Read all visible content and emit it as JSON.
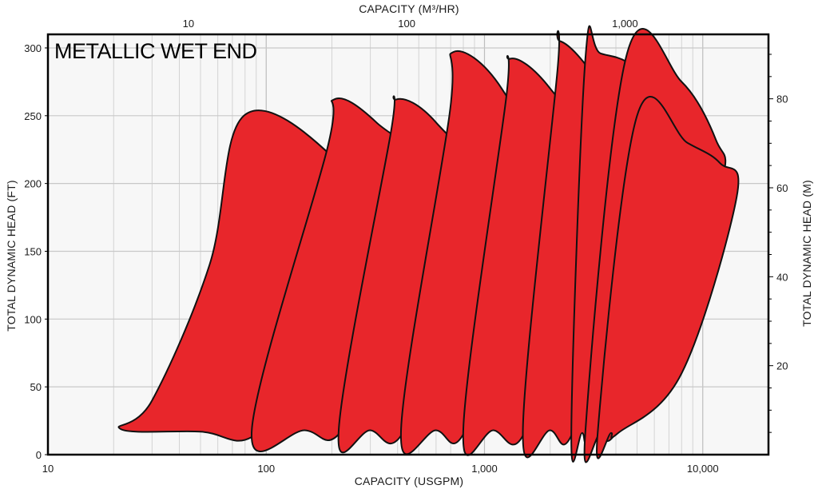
{
  "chart_data": {
    "type": "area",
    "title": "METALLIC WET END",
    "xlabel": "CAPACITY (USGPM)",
    "x_scale": "log",
    "xlim": [
      10,
      20000
    ],
    "ylabel": "TOTAL DYNAMIC HEAD (FT)",
    "ylim": [
      0,
      310
    ],
    "x_ticks": [
      10,
      100,
      1000,
      10000
    ],
    "x_tick_labels": [
      "10",
      "100",
      "1,000",
      "10,000"
    ],
    "y_ticks": [
      0,
      50,
      100,
      150,
      200,
      250,
      300
    ],
    "y_tick_labels": [
      "0",
      "50",
      "100",
      "150",
      "200",
      "250",
      "300"
    ],
    "x2label": "CAPACITY (M³/HR)",
    "x2_ticks": [
      10,
      100,
      1000
    ],
    "x2_tick_labels": [
      "10",
      "100",
      "1,000"
    ],
    "y2label": "TOTAL DYNAMIC HEAD (M)",
    "y2_ticks": [
      20,
      40,
      60,
      80
    ],
    "y2_tick_labels": [
      "20",
      "40",
      "60",
      "80"
    ],
    "grid": true,
    "fill_color": "#e8262b",
    "edge_color": "#111111",
    "series": [
      {
        "points": [
          [
            21.5,
            19
          ],
          [
            50,
            17
          ],
          [
            86,
            13
          ],
          [
            150,
            60
          ],
          [
            300,
            162
          ],
          [
            200,
            220
          ],
          [
            79,
            250
          ],
          [
            55,
            140
          ],
          [
            30,
            40
          ]
        ]
      },
      {
        "points": [
          [
            86,
            19
          ],
          [
            150,
            18
          ],
          [
            215,
            15
          ],
          [
            350,
            80
          ],
          [
            580,
            194
          ],
          [
            320,
            245
          ],
          [
            205,
            262
          ],
          [
            190,
            225
          ]
        ]
      },
      {
        "points": [
          [
            215,
            19
          ],
          [
            300,
            18
          ],
          [
            415,
            14
          ],
          [
            700,
            100
          ],
          [
            1060,
            184
          ],
          [
            600,
            245
          ],
          [
            395,
            262
          ],
          [
            370,
            235
          ]
        ]
      },
      {
        "points": [
          [
            415,
            19
          ],
          [
            600,
            18
          ],
          [
            800,
            15
          ],
          [
            1300,
            110
          ],
          [
            2070,
            184
          ],
          [
            1200,
            270
          ],
          [
            720,
            297
          ],
          [
            690,
            250
          ]
        ]
      },
      {
        "points": [
          [
            800,
            19
          ],
          [
            1100,
            18
          ],
          [
            1500,
            14
          ],
          [
            2300,
            110
          ],
          [
            3450,
            205
          ],
          [
            2000,
            270
          ],
          [
            1310,
            292
          ],
          [
            1250,
            260
          ]
        ]
      },
      {
        "points": [
          [
            1500,
            19
          ],
          [
            2000,
            18
          ],
          [
            2500,
            14
          ],
          [
            3800,
            110
          ],
          [
            5300,
            188
          ],
          [
            3400,
            270
          ],
          [
            2220,
            305
          ],
          [
            2150,
            280
          ]
        ]
      },
      {
        "points": [
          [
            2500,
            17
          ],
          [
            2800,
            16
          ],
          [
            3100,
            15
          ],
          [
            5000,
            100
          ],
          [
            8800,
            186
          ],
          [
            5500,
            275
          ],
          [
            3400,
            296
          ],
          [
            2900,
            292
          ]
        ]
      },
      {
        "points": [
          [
            2900,
            17
          ],
          [
            3400,
            16
          ],
          [
            4000,
            16
          ],
          [
            7000,
            90
          ],
          [
            12200,
            200
          ],
          [
            11500,
            232
          ],
          [
            8000,
            275
          ],
          [
            4500,
            296
          ]
        ]
      },
      {
        "points": [
          [
            3300,
            16
          ],
          [
            3800,
            16
          ],
          [
            4100,
            16
          ],
          [
            8000,
            60
          ],
          [
            14300,
            190
          ],
          [
            12000,
            215
          ],
          [
            8500,
            230
          ],
          [
            5000,
            250
          ]
        ]
      }
    ]
  }
}
